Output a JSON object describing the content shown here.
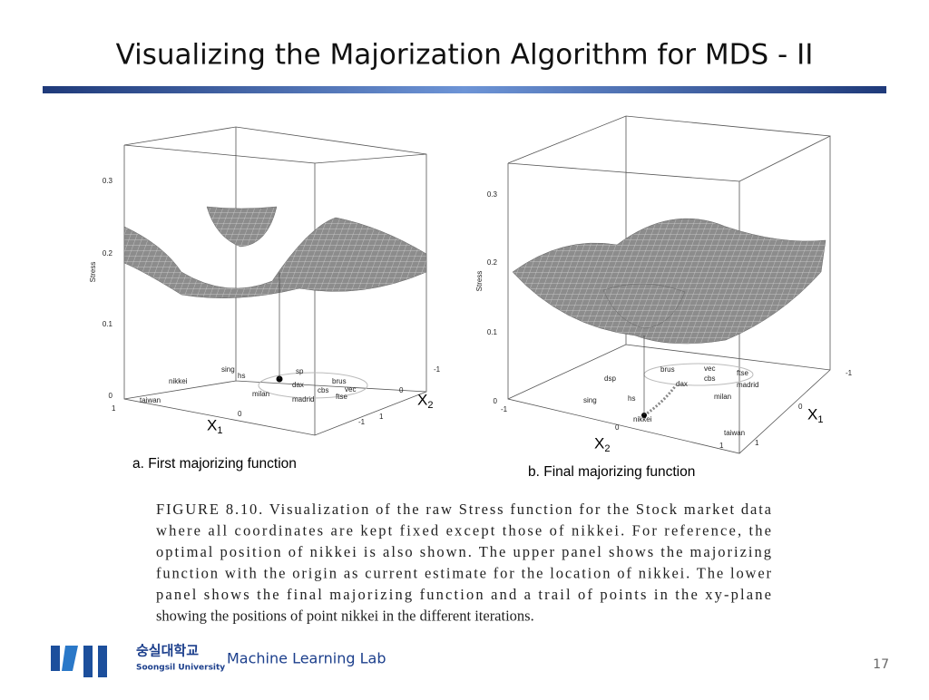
{
  "header": {
    "title": "Visualizing the Majorization Algorithm for MDS - II"
  },
  "figures": [
    {
      "caption": "a. First majorizing function",
      "z_label": "Stress",
      "z_ticks": [
        "0.3",
        "0.2",
        "0.1",
        "0"
      ],
      "x1_label": "X",
      "x1_sub": "1",
      "x1_ticks": [
        "1",
        "0",
        "-1"
      ],
      "x2_label": "X",
      "x2_sub": "2",
      "x2_ticks": [
        "1",
        "0",
        "-1"
      ],
      "points": [
        "sing",
        "hs",
        "sp",
        "nikkei",
        "dax",
        "cbs",
        "brus",
        "vec",
        "milan",
        "madrid",
        "ftse",
        "taiwan"
      ]
    },
    {
      "caption": "b. Final majorizing function",
      "z_label": "Stress",
      "z_ticks": [
        "0.3",
        "0.2",
        "0.1",
        "0"
      ],
      "x1_label": "X",
      "x1_sub": "1",
      "x1_ticks": [
        "-1",
        "0",
        "1"
      ],
      "x2_label": "X",
      "x2_sub": "2",
      "x2_ticks": [
        "-1",
        "0",
        "1"
      ],
      "points": [
        "dsp",
        "brus",
        "vec",
        "cbs",
        "ftse",
        "dax",
        "madrid",
        "sing",
        "hs",
        "milan",
        "nikkei",
        "taiwan"
      ]
    }
  ],
  "caption_lines": [
    "FIGURE 8.10. Visualization of the raw Stress function for the Stock market data",
    "where all coordinates are kept fixed except those of nikkei. For reference, the",
    "optimal position of nikkei is also shown. The upper panel shows the majorizing",
    "function with the origin as current estimate for the location of nikkei. The lower",
    "panel shows the final majorizing function and a trail of points in the xy-plane",
    "showing the positions of point nikkei in the different iterations."
  ],
  "footer": {
    "university_kr": "숭실대학교",
    "university_en": "Soongsil University",
    "lab": "Machine Learning Lab",
    "page": "17"
  }
}
